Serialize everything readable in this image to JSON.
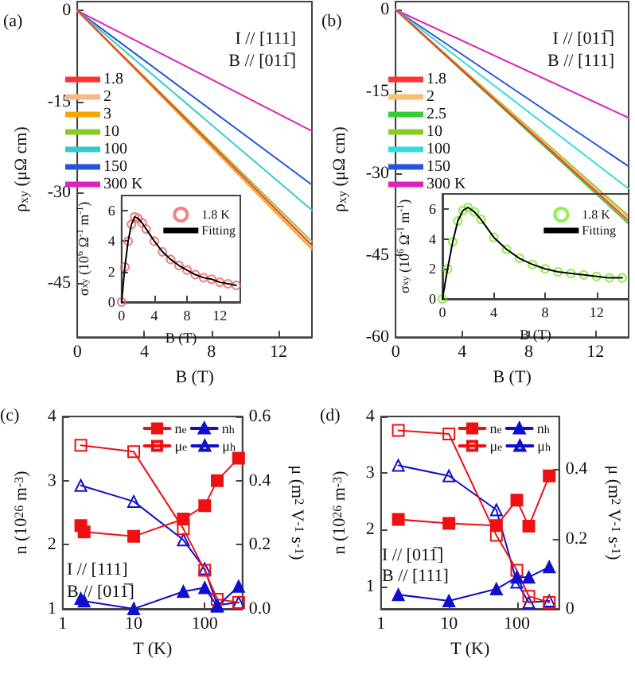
{
  "chart_data": [
    {
      "type": "line",
      "xlabel": "B (T)",
      "ylabel": "ρ$_{xy}$ (μΩ cm)",
      "annotations": [
        "(a)",
        "I // [111]",
        "B // [011̅]"
      ],
      "x": [
        0,
        14
      ],
      "xlim": [
        0,
        14
      ],
      "xticks": [
        0,
        4,
        8,
        12
      ],
      "ylim": [
        -54,
        1.5
      ],
      "yticks": [
        0,
        -15,
        -30,
        -45
      ],
      "legend": "left",
      "marker": "none",
      "series": [
        {
          "name": "1.8",
          "color": "#ff3333",
          "values": [
            0,
            -38.8
          ]
        },
        {
          "name": "2",
          "color": "#f7b98a",
          "values": [
            0,
            -39.1
          ]
        },
        {
          "name": "3",
          "color": "#f5a500",
          "values": [
            0,
            -39.5
          ]
        },
        {
          "name": "10",
          "color": "#88cc22",
          "values": [
            0,
            -38.2
          ]
        },
        {
          "name": "100",
          "color": "#33cccc",
          "values": [
            0,
            -33.0
          ]
        },
        {
          "name": "150",
          "color": "#2255dd",
          "values": [
            0,
            -28.8
          ]
        },
        {
          "name": "300 K",
          "color": "#dd22bb",
          "values": [
            0,
            -19.9
          ]
        }
      ]
    },
    {
      "type": "scatter",
      "xlabel": "B (T)",
      "ylabel": "σ$_{xy}$ (10$^{6}$ Ω$^{-1}$ m$^{-1}$)",
      "x": [
        0,
        0.4,
        0.8,
        1.2,
        1.6,
        2,
        2.5,
        3,
        4,
        5,
        6,
        7,
        8,
        9,
        10,
        11,
        12,
        13,
        14
      ],
      "xlim": [
        0,
        14.5
      ],
      "xticks": [
        0,
        4,
        8,
        12
      ],
      "ylim": [
        0,
        7
      ],
      "yticks": [
        0,
        2,
        4,
        6
      ],
      "legend": "top right",
      "series": [
        {
          "name": "1.8 K",
          "color": "#f06060",
          "marker": "circle",
          "values": [
            0,
            2.3,
            4.0,
            5.1,
            5.6,
            5.5,
            5.2,
            4.8,
            4.0,
            3.3,
            2.8,
            2.4,
            2.1,
            1.8,
            1.6,
            1.5,
            1.3,
            1.2,
            1.1
          ]
        },
        {
          "name": "Fitting",
          "type": "line",
          "color": "#000000",
          "marker": "none",
          "values": [
            0,
            2.3,
            4.0,
            5.1,
            5.6,
            5.5,
            5.2,
            4.8,
            4.0,
            3.3,
            2.8,
            2.4,
            2.1,
            1.8,
            1.6,
            1.5,
            1.3,
            1.2,
            1.1
          ]
        }
      ]
    },
    {
      "type": "line",
      "xlabel": "B (T)",
      "ylabel": "ρ$_{xy}$ (μΩ cm)",
      "annotations": [
        "(b)",
        "I // [011̅]",
        "B // [111]"
      ],
      "x": [
        0,
        14
      ],
      "xlim": [
        0,
        14
      ],
      "xticks": [
        0,
        4,
        8,
        12
      ],
      "ylim": [
        -60,
        1.5
      ],
      "yticks": [
        0,
        -15,
        -30,
        -45,
        -60
      ],
      "legend": "left",
      "marker": "none",
      "series": [
        {
          "name": "1.8",
          "color": "#ff3333",
          "values": [
            0,
            -38.7
          ]
        },
        {
          "name": "2",
          "color": "#f7c070",
          "values": [
            0,
            -38.2
          ]
        },
        {
          "name": "2.5",
          "color": "#33cc33",
          "values": [
            0,
            -39.2
          ]
        },
        {
          "name": "10",
          "color": "#88cc22",
          "values": [
            0,
            -37.8
          ]
        },
        {
          "name": "100",
          "color": "#33dddd",
          "values": [
            0,
            -32.8
          ]
        },
        {
          "name": "150",
          "color": "#2255dd",
          "values": [
            0,
            -28.7
          ]
        },
        {
          "name": "300 K",
          "color": "#dd22bb",
          "values": [
            0,
            -19.8
          ]
        }
      ]
    },
    {
      "type": "scatter",
      "xlabel": "B (T)",
      "ylabel": "σ$_{xy}$ (10$^{6}$ Ω$^{-1}$ m$^{-1}$)",
      "x": [
        0,
        0.4,
        0.8,
        1.2,
        1.6,
        2,
        2.5,
        3,
        4,
        5,
        6,
        7,
        8,
        9,
        10,
        11,
        12,
        13,
        14
      ],
      "xlim": [
        0,
        14.5
      ],
      "xticks": [
        0,
        4,
        8,
        12
      ],
      "ylim": [
        0,
        7
      ],
      "yticks": [
        0,
        2,
        4,
        6
      ],
      "legend": "top right",
      "series": [
        {
          "name": "1.8 K",
          "color": "#77ee22",
          "marker": "circle",
          "values": [
            0,
            2.0,
            3.8,
            5.2,
            5.9,
            6.1,
            5.8,
            5.3,
            4.1,
            3.3,
            2.7,
            2.3,
            2.0,
            1.8,
            1.7,
            1.6,
            1.5,
            1.4,
            1.4
          ]
        },
        {
          "name": "Fitting",
          "type": "line",
          "color": "#000000",
          "marker": "none",
          "values": [
            0,
            2.0,
            3.8,
            5.2,
            5.9,
            6.1,
            5.8,
            5.3,
            4.1,
            3.3,
            2.7,
            2.3,
            2.0,
            1.8,
            1.7,
            1.6,
            1.5,
            1.4,
            1.4
          ]
        }
      ]
    },
    {
      "type": "line",
      "xlabel": "T (K)",
      "ylabel": "n (10$^{26}$ m$^{-3}$)",
      "y2label": "μ (m$^{2}$ V$^{-1}$ s$^{-1}$)",
      "annotations": [
        "(c)",
        "I // [111]",
        "B // [011̅]"
      ],
      "log": "x",
      "xlim": [
        1,
        340
      ],
      "xticks": [
        1,
        10,
        100
      ],
      "ylim": [
        1,
        4
      ],
      "yticks": [
        1,
        2,
        3,
        4
      ],
      "y2lim": [
        0,
        0.6
      ],
      "y2ticks": [
        {
          "value": 0,
          "label": "0.0"
        },
        0.2,
        0.4,
        0.6
      ],
      "legend": "top right",
      "series": [
        {
          "name": "n$_{e}$",
          "color": "#ee1111",
          "marker": "square",
          "x": [
            1.8,
            2,
            10,
            50,
            100,
            150,
            300
          ],
          "values": [
            2.3,
            2.2,
            2.13,
            2.4,
            2.61,
            3.0,
            3.35
          ]
        },
        {
          "name": "n$_{h}$",
          "color": "#1010cc",
          "marker": "triangle",
          "x": [
            1.8,
            2,
            10,
            50,
            100,
            150,
            300
          ],
          "values": [
            1.16,
            1.12,
            1.0,
            1.27,
            1.33,
            1.04,
            1.35
          ]
        },
        {
          "name": "μ$_{e}$",
          "color": "#ee1111",
          "marker": "square",
          "axis": "y2",
          "x": [
            1.8,
            10,
            50,
            100,
            150,
            300
          ],
          "values": [
            0.51,
            0.49,
            0.25,
            0.12,
            0.03,
            0.02
          ]
        },
        {
          "name": "μ$_{h}$",
          "color": "#1010cc",
          "marker": "triangle",
          "axis": "y2",
          "x": [
            1.8,
            10,
            50,
            100,
            150,
            300
          ],
          "values": [
            0.385,
            0.335,
            0.215,
            0.125,
            0.012,
            0.02
          ]
        }
      ]
    },
    {
      "type": "line",
      "xlabel": "T (K)",
      "ylabel": "n (10$^{26}$ m$^{-3}$)",
      "y2label": "μ (m$^{2}$ V$^{-1}$ s$^{-1}$)",
      "annotations": [
        "(d)",
        "I // [011̅]",
        "B // [111]"
      ],
      "log": "x",
      "xlim": [
        1,
        420
      ],
      "xticks": [
        1,
        10,
        100
      ],
      "ylim": [
        0.6,
        4
      ],
      "yticks": [
        1,
        2,
        3,
        4
      ],
      "y2lim": [
        0,
        0.55
      ],
      "y2ticks": [
        0,
        0.2,
        0.4
      ],
      "legend": "top right",
      "series": [
        {
          "name": "n$_{e}$",
          "color": "#ee1111",
          "marker": "square",
          "x": [
            1.8,
            10,
            50,
            100,
            150,
            300
          ],
          "values": [
            2.18,
            2.11,
            2.07,
            2.52,
            2.06,
            2.95
          ]
        },
        {
          "name": "n$_{h}$",
          "color": "#1010cc",
          "marker": "triangle",
          "x": [
            1.8,
            10,
            50,
            100,
            150,
            300
          ],
          "values": [
            0.85,
            0.74,
            0.95,
            1.16,
            1.16,
            1.34
          ]
        },
        {
          "name": "μ$_{e}$",
          "color": "#ee1111",
          "marker": "square",
          "axis": "y2",
          "x": [
            1.8,
            10,
            50,
            100,
            150,
            300
          ],
          "values": [
            0.51,
            0.5,
            0.21,
            0.11,
            0.036,
            0.018
          ]
        },
        {
          "name": "μ$_{h}$",
          "color": "#1010cc",
          "marker": "triangle",
          "axis": "y2",
          "x": [
            1.8,
            10,
            50,
            100,
            150,
            300
          ],
          "values": [
            0.41,
            0.38,
            0.283,
            0.076,
            0.018,
            0.023
          ]
        }
      ]
    }
  ]
}
